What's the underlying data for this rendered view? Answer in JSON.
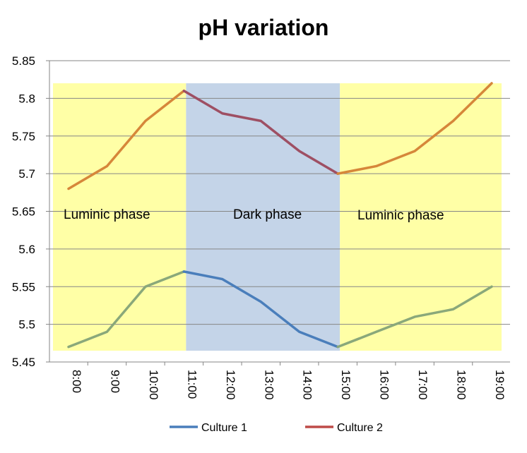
{
  "chart_data": {
    "type": "line",
    "title": "pH variation",
    "xlabel": "",
    "ylabel": "",
    "categories": [
      "8:00",
      "9:00",
      "10:00",
      "11:00",
      "12:00",
      "13:00",
      "14:00",
      "15:00",
      "16:00",
      "17:00",
      "18:00",
      "19:00"
    ],
    "ylim": [
      5.45,
      5.85
    ],
    "yticks": [
      "5.45",
      "5.5",
      "5.55",
      "5.6",
      "5.65",
      "5.7",
      "5.75",
      "5.8",
      "5.85"
    ],
    "grid": true,
    "legend_position": "bottom",
    "series": [
      {
        "name": "Culture 1",
        "color": "#4a7ebb",
        "values": [
          5.47,
          5.49,
          5.55,
          5.57,
          5.56,
          5.53,
          5.49,
          5.47,
          5.49,
          5.51,
          5.52,
          5.55
        ]
      },
      {
        "name": "Culture 2",
        "color": "#be4b48",
        "values": [
          5.68,
          5.71,
          5.77,
          5.81,
          5.78,
          5.77,
          5.73,
          5.7,
          5.71,
          5.73,
          5.77,
          5.82
        ]
      }
    ],
    "phases": [
      {
        "label": "Luminic phase",
        "start": "8:00",
        "end": "11:00",
        "color": "#ffffa6",
        "line_color_c1": "#8aa87a",
        "line_color_c2": "#d6873a"
      },
      {
        "label": "Dark phase",
        "start": "11:00",
        "end": "15:00",
        "color": "#c4d4e8",
        "line_color_c1": "#4a7ebb",
        "line_color_c2": "#9e4f63"
      },
      {
        "label": "Luminic phase",
        "start": "15:00",
        "end": "19:00",
        "color": "#ffffa6",
        "line_color_c1": "#8aa87a",
        "line_color_c2": "#d6873a"
      }
    ]
  }
}
